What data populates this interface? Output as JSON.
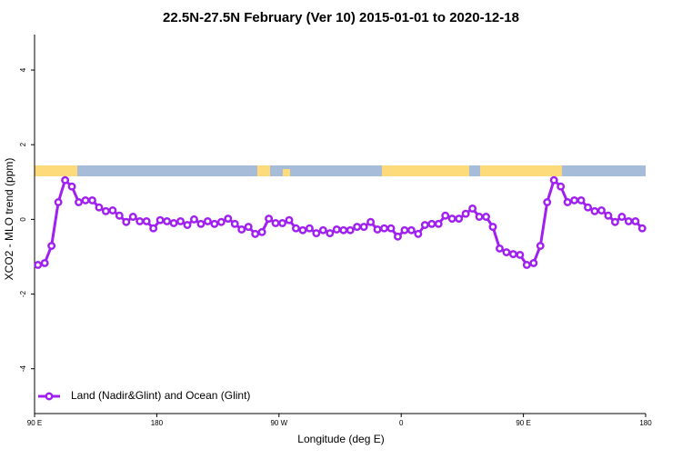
{
  "chart_data": {
    "type": "line",
    "title": "22.5N-27.5N February (Ver 10)   2015-01-01 to 2020-12-18",
    "x_label": "Longitude (deg E)",
    "y_label": "XCO2 - MLO trend (ppm)",
    "x": [
      92.5,
      97.5,
      102.5,
      107.5,
      112.5,
      117.5,
      122.5,
      127.5,
      132.5,
      137.5,
      142.5,
      147.5,
      152.5,
      157.5,
      162.5,
      167.5,
      172.5,
      177.5,
      182.5,
      187.5,
      192.5,
      197.5,
      202.5,
      207.5,
      212.5,
      217.5,
      222.5,
      227.5,
      232.5,
      237.5,
      242.5,
      247.5,
      252.5,
      257.5,
      262.5,
      267.5,
      272.5,
      277.5,
      282.5,
      287.5,
      292.5,
      297.5,
      302.5,
      307.5,
      312.5,
      317.5,
      322.5,
      327.5,
      332.5,
      337.5,
      342.5,
      347.5,
      352.5,
      357.5,
      362.5,
      367.5,
      372.5,
      377.5,
      382.5,
      387.5,
      392.5,
      397.5,
      402.5,
      407.5,
      412.5,
      417.5,
      422.5,
      427.5,
      432.5,
      437.5,
      442.5,
      447.5,
      452.5,
      457.5,
      462.5,
      467.5,
      472.5,
      477.5,
      482.5,
      487.5,
      492.5,
      497.5,
      502.5,
      507.5,
      512.5,
      517.5,
      522.5,
      527.5,
      532.5,
      537.5
    ],
    "series": [
      {
        "name": "Land (Nadir&Glint) and Ocean (Glint)",
        "color": "#a020f0",
        "values": [
          -1.22,
          -1.17,
          -0.71,
          0.46,
          1.05,
          0.88,
          0.46,
          0.51,
          0.51,
          0.32,
          0.22,
          0.24,
          0.1,
          -0.07,
          0.07,
          -0.05,
          -0.05,
          -0.24,
          -0.02,
          -0.05,
          -0.1,
          -0.05,
          -0.15,
          0,
          -0.12,
          -0.05,
          -0.12,
          -0.07,
          0.02,
          -0.12,
          -0.27,
          -0.2,
          -0.39,
          -0.34,
          0.02,
          -0.1,
          -0.1,
          -0.02,
          -0.24,
          -0.29,
          -0.24,
          -0.37,
          -0.29,
          -0.37,
          -0.27,
          -0.29,
          -0.29,
          -0.2,
          -0.2,
          -0.07,
          -0.27,
          -0.24,
          -0.24,
          -0.46,
          -0.29,
          -0.29,
          -0.39,
          -0.15,
          -0.12,
          -0.12,
          0.1,
          0.02,
          0.02,
          0.15,
          0.29,
          0.07,
          0.07,
          -0.2,
          -0.78,
          -0.88,
          -0.93,
          -0.95,
          -1.22,
          -1.17,
          -0.71,
          0.46,
          1.05,
          0.88,
          0.46,
          0.51,
          0.51,
          0.32,
          0.22,
          0.24,
          0.1,
          -0.07,
          0.07,
          -0.05,
          -0.05,
          -0.24
        ]
      }
    ],
    "xlim": [
      90,
      540
    ],
    "xticks": [
      {
        "value": 90,
        "label": "90 E"
      },
      {
        "value": 180,
        "label": "180"
      },
      {
        "value": 270,
        "label": "90 W"
      },
      {
        "value": 360,
        "label": "0"
      },
      {
        "value": 450,
        "label": "90 E"
      },
      {
        "value": 540,
        "label": "180"
      }
    ],
    "ylim": [
      -5.2,
      4.95
    ],
    "yticks": [
      -4,
      -2,
      0,
      2,
      4
    ],
    "legend": "bottom-left"
  }
}
